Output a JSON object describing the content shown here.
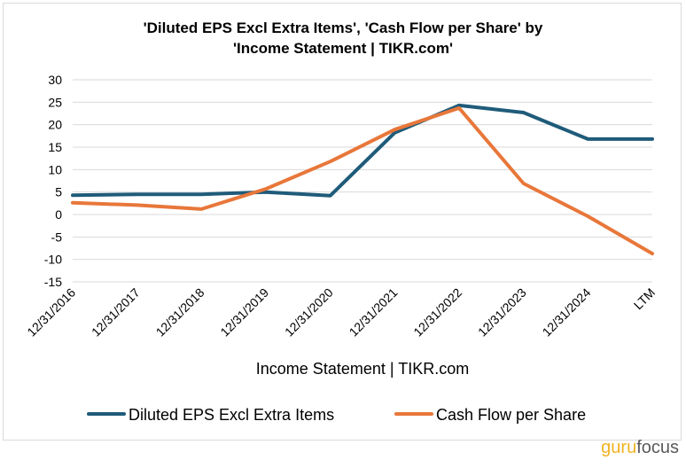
{
  "chart_data": {
    "type": "line",
    "title_line1": "'Diluted EPS Excl Extra Items', 'Cash Flow per Share' by",
    "title_line2": "'Income Statement | TIKR.com'",
    "xlabel": "Income Statement | TIKR.com",
    "ylabel": "",
    "categories": [
      "12/31/2016",
      "12/31/2017",
      "12/31/2018",
      "12/31/2019",
      "12/31/2020",
      "12/31/2021",
      "12/31/2022",
      "12/31/2023",
      "12/31/2024",
      "LTM"
    ],
    "ylim": [
      -15,
      30
    ],
    "yticks": [
      "30",
      "25",
      "20",
      "15",
      "10",
      "5",
      "0",
      "-5",
      "-10",
      "-15"
    ],
    "grid": true,
    "legend_position": "bottom",
    "series": [
      {
        "name": "Diluted EPS Excl Extra Items",
        "color": "#1f5b7a",
        "values": [
          4.3,
          4.5,
          4.5,
          5.0,
          4.2,
          18.2,
          24.3,
          22.7,
          16.8,
          16.8
        ]
      },
      {
        "name": "Cash Flow per Share",
        "color": "#e8773a",
        "values": [
          2.6,
          2.1,
          1.2,
          5.7,
          11.8,
          18.9,
          23.7,
          6.9,
          -0.4,
          -8.7
        ]
      }
    ]
  },
  "watermark": {
    "part1": "guru",
    "part2": "focus"
  }
}
